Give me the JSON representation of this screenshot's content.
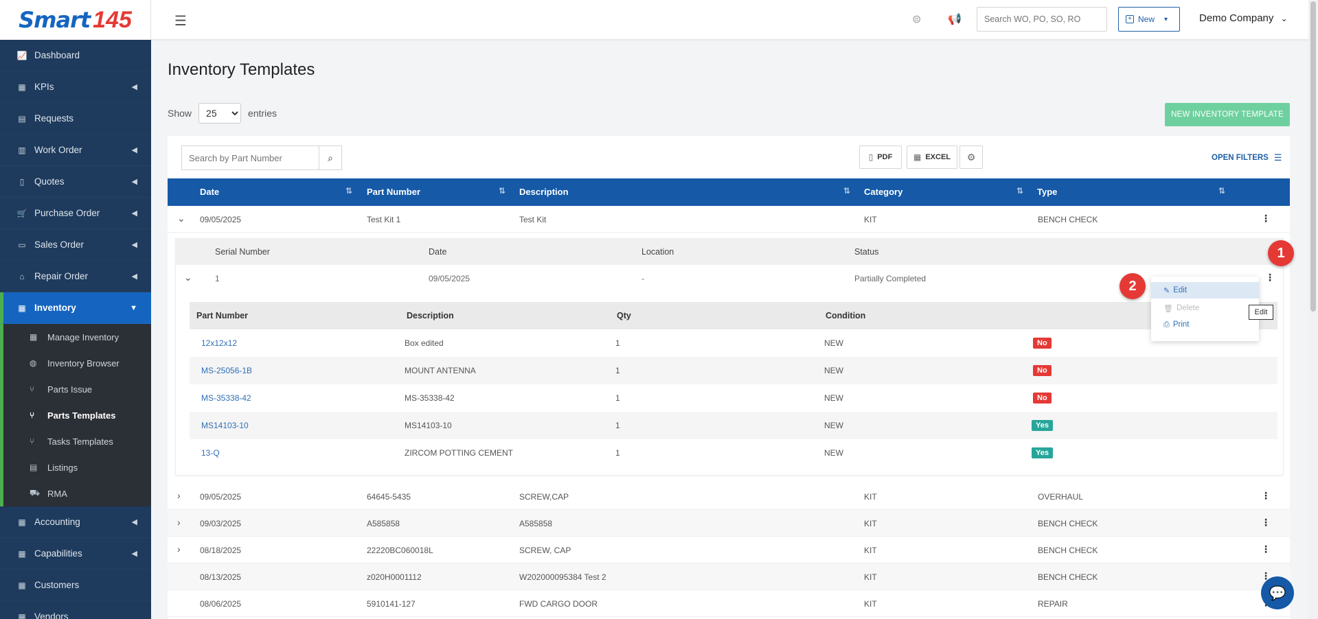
{
  "logo": {
    "text": "Smart",
    "num": "145"
  },
  "sidebar": {
    "items": [
      {
        "label": "Dashboard",
        "icon": "chart-icon"
      },
      {
        "label": "KPIs",
        "icon": "kpi-icon"
      },
      {
        "label": "Requests",
        "icon": "document-icon"
      },
      {
        "label": "Work Order",
        "icon": "clipboard-icon"
      },
      {
        "label": "Quotes",
        "icon": "quote-icon"
      },
      {
        "label": "Purchase Order",
        "icon": "cart-icon"
      },
      {
        "label": "Sales Order",
        "icon": "card-icon"
      },
      {
        "label": "Repair Order",
        "icon": "wrench-icon"
      },
      {
        "label": "Inventory",
        "icon": "inventory-icon"
      },
      {
        "label": "Accounting",
        "icon": "calculator-icon"
      },
      {
        "label": "Capabilities",
        "icon": "capabilities-icon"
      },
      {
        "label": "Customers",
        "icon": "users-icon"
      },
      {
        "label": "Vendors",
        "icon": "vendor-icon"
      }
    ],
    "inventory_sub": [
      {
        "label": "Manage Inventory"
      },
      {
        "label": "Inventory Browser"
      },
      {
        "label": "Parts Issue"
      },
      {
        "label": "Parts Templates"
      },
      {
        "label": "Tasks Templates"
      },
      {
        "label": "Listings"
      },
      {
        "label": "RMA"
      }
    ]
  },
  "topbar": {
    "search_placeholder": "Search WO, PO, SO, RO",
    "new_label": "New",
    "company": "Demo Company"
  },
  "page": {
    "title": "Inventory Templates",
    "show_label": "Show",
    "entries_value": "25",
    "entries_label": "entries",
    "new_template_label": "NEW INVENTORY TEMPLATE"
  },
  "toolbar": {
    "search_placeholder": "Search by Part Number",
    "pdf_label": "PDF",
    "excel_label": "EXCEL",
    "open_filters_label": "OPEN FILTERS"
  },
  "table": {
    "headers": {
      "date": "Date",
      "part_number": "Part Number",
      "description": "Description",
      "category": "Category",
      "type": "Type"
    },
    "rows": [
      {
        "date": "09/05/2025",
        "part_number": "Test Kit 1",
        "description": "Test Kit",
        "category": "KIT",
        "type": "BENCH CHECK"
      },
      {
        "date": "09/05/2025",
        "part_number": "64645-5435",
        "description": "SCREW,CAP",
        "category": "KIT",
        "type": "OVERHAUL"
      },
      {
        "date": "09/03/2025",
        "part_number": "A585858",
        "description": "A585858",
        "category": "KIT",
        "type": "BENCH CHECK"
      },
      {
        "date": "08/18/2025",
        "part_number": "22220BC060018L",
        "description": "SCREW, CAP",
        "category": "KIT",
        "type": "BENCH CHECK"
      },
      {
        "date": "08/13/2025",
        "part_number": "z020H0001112",
        "description": "W202000095384 Test 2",
        "category": "KIT",
        "type": "BENCH CHECK"
      },
      {
        "date": "08/06/2025",
        "part_number": "5910141-127",
        "description": "FWD CARGO DOOR",
        "category": "KIT",
        "type": "REPAIR"
      }
    ]
  },
  "serials": {
    "headers": {
      "serial": "Serial Number",
      "date": "Date",
      "location": "Location",
      "status": "Status"
    },
    "row": {
      "serial": "1",
      "date": "09/05/2025",
      "location": "-",
      "status": "Partially Completed"
    }
  },
  "parts": {
    "headers": {
      "part_number": "Part Number",
      "description": "Description",
      "qty": "Qty",
      "condition": "Condition"
    },
    "rows": [
      {
        "part_number": "12x12x12",
        "description": "Box edited",
        "qty": "1",
        "condition": "NEW",
        "flag": "No"
      },
      {
        "part_number": "MS-25056-1B",
        "description": "MOUNT ANTENNA",
        "qty": "1",
        "condition": "NEW",
        "flag": "No"
      },
      {
        "part_number": "MS-35338-42",
        "description": "MS-35338-42",
        "qty": "1",
        "condition": "NEW",
        "flag": "No"
      },
      {
        "part_number": "MS14103-10",
        "description": "MS14103-10",
        "qty": "1",
        "condition": "NEW",
        "flag": "Yes"
      },
      {
        "part_number": "13-Q",
        "description": "ZIRCOM POTTING CEMENT",
        "qty": "1",
        "condition": "NEW",
        "flag": "Yes"
      }
    ]
  },
  "menu": {
    "edit": "Edit",
    "delete": "Delete",
    "print": "Print",
    "tooltip": "Edit"
  },
  "markers": {
    "one": "1",
    "two": "2"
  },
  "colors": {
    "primary": "#1559a7",
    "sidebar": "#1e3a5c",
    "accent_green": "#6fd09f",
    "no": "#e53935",
    "yes": "#26a69a"
  }
}
